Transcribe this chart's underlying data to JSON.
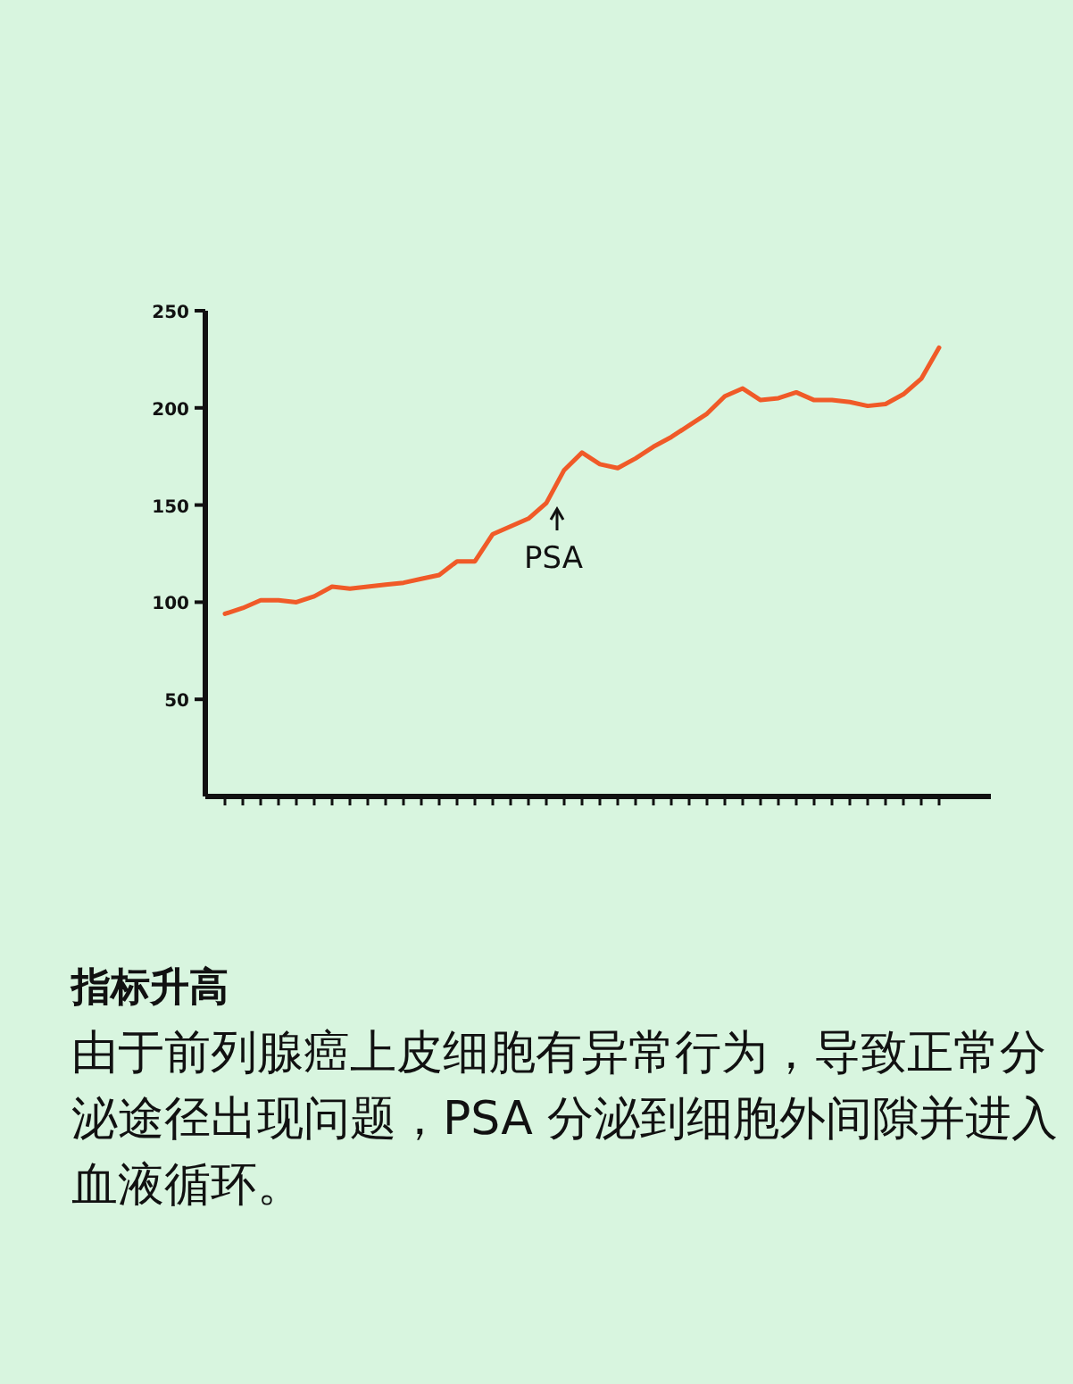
{
  "chart_data": {
    "type": "line",
    "title": "指标升高",
    "annotations": [
      "PSA",
      "由于前列腺癌上皮细胞有异常行为，导致正常分泌途径出现问题，PSA 分泌到细胞外间隙并进入血液循环。"
    ],
    "categories": [
      null,
      null,
      null,
      null,
      null,
      null,
      null,
      null,
      null,
      null,
      null,
      null,
      null,
      null,
      null,
      null,
      null,
      null,
      null,
      null,
      null,
      null,
      null,
      null,
      null,
      null,
      null,
      null,
      null,
      null,
      null,
      null,
      null,
      null,
      null,
      null,
      null,
      null,
      null,
      null,
      null
    ],
    "series": [
      {
        "color": "#f05a28",
        "values": [
          94,
          97,
          101,
          101,
          100,
          103,
          108,
          107,
          108,
          109,
          110,
          112,
          114,
          121,
          121,
          135,
          139,
          143,
          151,
          168,
          177,
          171,
          169,
          174,
          180,
          185,
          191,
          197,
          206,
          210,
          204,
          205,
          208,
          204,
          204,
          203,
          201,
          202,
          207,
          215,
          231
        ]
      }
    ],
    "ylim": [
      0,
      250
    ],
    "yticks": [
      50,
      100,
      150,
      200,
      250
    ],
    "tick_labels": "y",
    "grid": false,
    "marker": "none",
    "line_style": "solid"
  }
}
